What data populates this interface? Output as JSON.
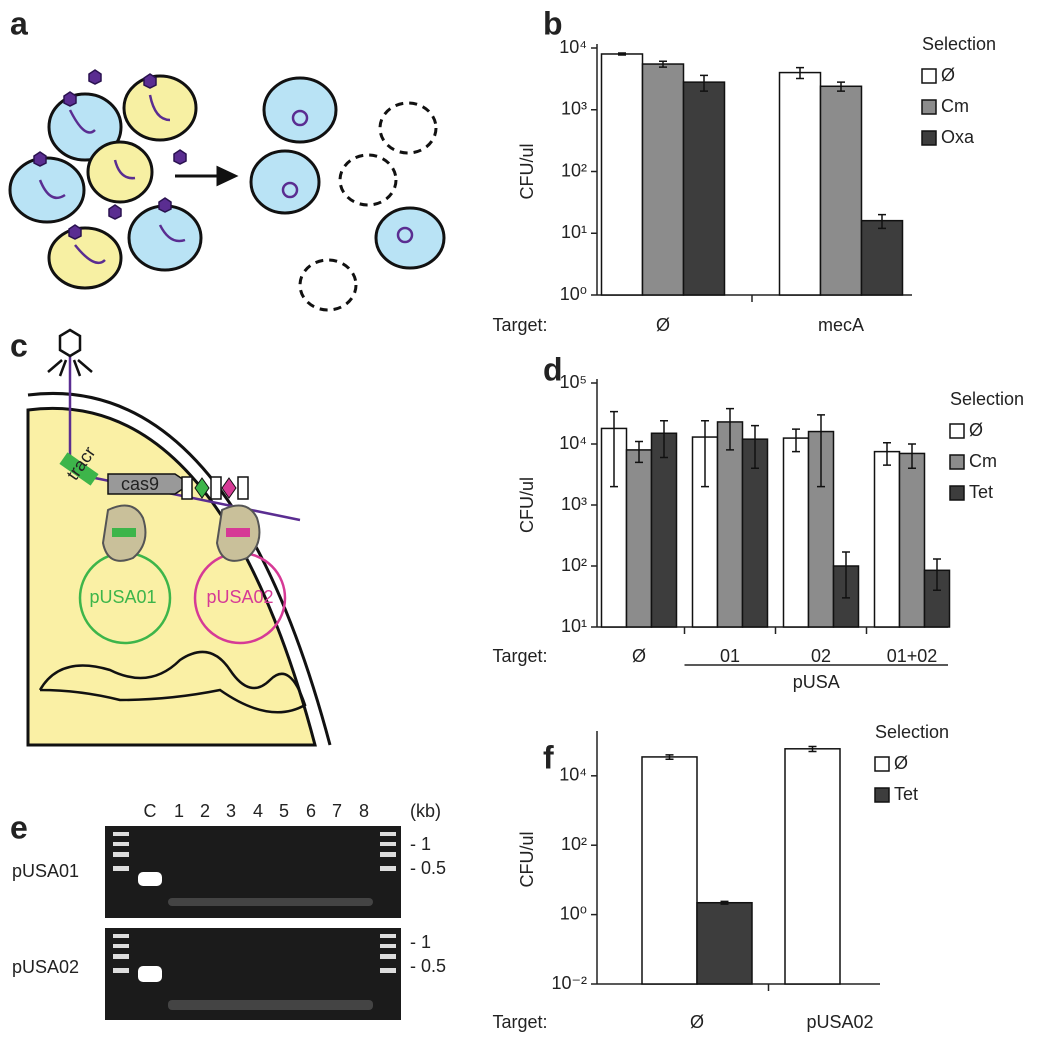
{
  "panel_labels": [
    "a",
    "b",
    "c",
    "d",
    "e",
    "f"
  ],
  "diagram_c": {
    "labels": [
      "tracr",
      "cas9",
      "pUSA01",
      "pUSA02"
    ]
  },
  "gel": {
    "lanes": [
      "C",
      "1",
      "2",
      "3",
      "4",
      "5",
      "6",
      "7",
      "8"
    ],
    "unit": "(kb)",
    "rows": [
      "pUSA01",
      "pUSA02"
    ],
    "sizes": [
      "- 1",
      "- 0.5"
    ]
  },
  "chart_data": [
    {
      "type": "bar",
      "log": true,
      "y_label": "CFU/ul",
      "x_label": "Target:",
      "legend_title": "Selection",
      "categories": [
        "Ø",
        "mecA"
      ],
      "series": [
        {
          "name": "Ø",
          "color": "#ffffff",
          "values": [
            8000,
            4000
          ],
          "errors": [
            300,
            800
          ]
        },
        {
          "name": "Cm",
          "color": "#8c8c8c",
          "values": [
            5500,
            2400
          ],
          "errors": [
            600,
            400
          ]
        },
        {
          "name": "Oxa",
          "color": "#3d3d3d",
          "values": [
            2800,
            16
          ],
          "errors": [
            800,
            4
          ]
        }
      ],
      "ylim": [
        1,
        10000
      ],
      "yticks": [
        {
          "value": 1,
          "label": "10⁰"
        },
        {
          "value": 10,
          "label": "10¹"
        },
        {
          "value": 100,
          "label": "10²"
        },
        {
          "value": 1000,
          "label": "10³"
        },
        {
          "value": 10000,
          "label": "10⁴"
        }
      ]
    },
    {
      "type": "bar",
      "log": true,
      "y_label": "CFU/ul",
      "x_label": "Target:",
      "legend_title": "Selection",
      "group_label": "pUSA",
      "categories": [
        "Ø",
        "01",
        "02",
        "01+02"
      ],
      "series": [
        {
          "name": "Ø",
          "color": "#ffffff",
          "values": [
            18000,
            13000,
            12500,
            7500
          ],
          "errors": [
            16000,
            11000,
            5000,
            3000
          ]
        },
        {
          "name": "Cm",
          "color": "#8c8c8c",
          "values": [
            8000,
            23000,
            16000,
            7000
          ],
          "errors": [
            3000,
            15000,
            14000,
            3000
          ]
        },
        {
          "name": "Tet",
          "color": "#3d3d3d",
          "values": [
            15000,
            12000,
            100,
            85
          ],
          "errors": [
            9000,
            8000,
            70,
            45
          ]
        }
      ],
      "ylim": [
        10,
        100000
      ],
      "yticks": [
        {
          "value": 10,
          "label": "10¹"
        },
        {
          "value": 100,
          "label": "10²"
        },
        {
          "value": 1000,
          "label": "10³"
        },
        {
          "value": 10000,
          "label": "10⁴"
        },
        {
          "value": 100000,
          "label": "10⁵"
        }
      ]
    },
    {
      "type": "bar",
      "log": true,
      "y_label": "CFU/ul",
      "x_label": "Target:",
      "legend_title": "Selection",
      "categories": [
        "Ø",
        "pUSA02"
      ],
      "series": [
        {
          "name": "Ø",
          "color": "#ffffff",
          "values": [
            35000,
            60000
          ],
          "errors": [
            5000,
            10000
          ]
        },
        {
          "name": "Tet",
          "color": "#3d3d3d",
          "values": [
            2.2,
            null
          ],
          "errors": [
            0.2,
            null
          ]
        }
      ],
      "ylim": [
        0.01,
        150000
      ],
      "yticks": [
        {
          "value": 0.01,
          "label": "10⁻²"
        },
        {
          "value": 1,
          "label": "10⁰"
        },
        {
          "value": 100,
          "label": "10²"
        },
        {
          "value": 10000,
          "label": "10⁴"
        }
      ]
    }
  ]
}
